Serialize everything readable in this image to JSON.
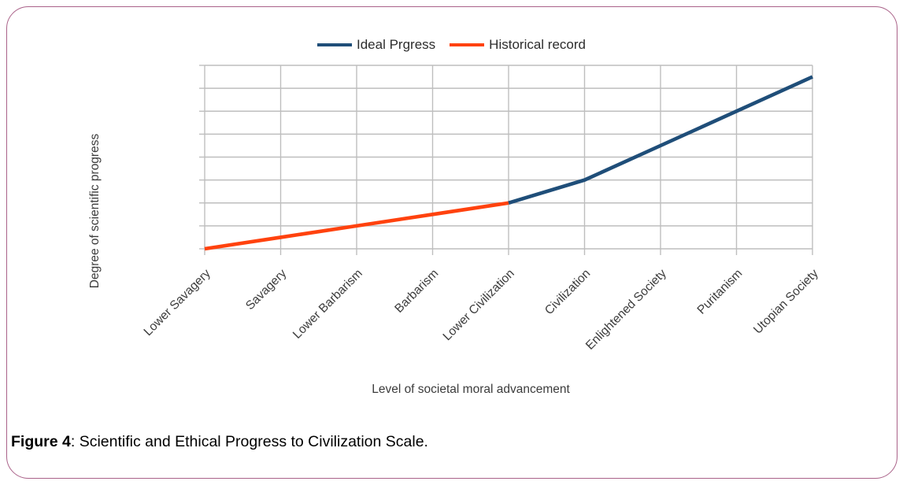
{
  "figure": {
    "caption_prefix": "Figure 4",
    "caption_text": ": Scientific and Ethical Progress to Civilization Scale."
  },
  "colors": {
    "ideal_series": "#1F4E79",
    "historical_series": "#FF420E",
    "grid": "#BEBEBE",
    "axis_text": "#3C3C3C",
    "frame_border": "#AA6289",
    "background": "#FFFFFF"
  },
  "chart_data": {
    "type": "line",
    "title": "",
    "xlabel": "Level of societal moral advancement",
    "ylabel": "Degree of scientific progress",
    "categories": [
      "Lower Savagery",
      "Savagery",
      "Lower Barbarism",
      "Barbarism",
      "Lower Civilization",
      "Civilization",
      "Enlightened Society",
      "Puritanism",
      "Utopian Society"
    ],
    "series": [
      {
        "name": "Ideal Prgress",
        "color": "#1F4E79",
        "values": [
          null,
          null,
          null,
          null,
          2,
          3,
          4.5,
          6,
          7.5
        ]
      },
      {
        "name": "Historical record",
        "color": "#FF420E",
        "values": [
          0,
          0.5,
          1,
          1.5,
          2,
          null,
          null,
          null,
          null
        ]
      }
    ],
    "ylim": [
      0,
      8
    ],
    "y_grid_step": 1,
    "grid": "both",
    "legend_position": "top",
    "y_tick_labels_visible": false,
    "x_tick_label_rotation_deg": -45
  }
}
